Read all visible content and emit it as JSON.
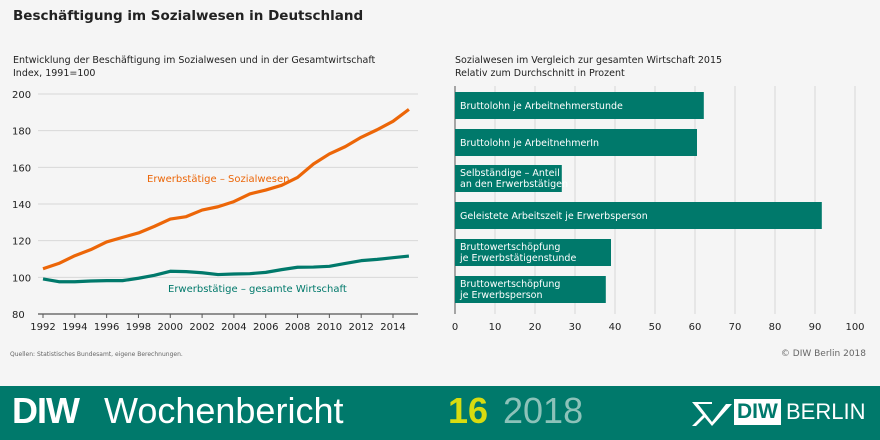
{
  "title": "Beschäftigung im Sozialwesen in Deutschland",
  "source": "Quellen: Statistisches Bundesamt, eigene Berechnungen.",
  "copyright": "© DIW Berlin 2018",
  "footer": {
    "brand_bold": "DIW",
    "brand_light": "Wochenbericht",
    "issue": "16",
    "year": "2018",
    "logo_text": "DIW",
    "logo_text2": "BERLIN"
  },
  "colors": {
    "orange": "#ec6608",
    "teal": "#00796b",
    "footer_bg": "#00796b",
    "issue": "#d8dc10"
  },
  "chart_data": [
    {
      "type": "line",
      "title": "Entwicklung der Beschäftigung im Sozialwesen und in der Gesamtwirtschaft",
      "subtitle": "Index, 1991=100",
      "ylim": [
        80,
        200
      ],
      "yticks": [
        80,
        100,
        120,
        140,
        160,
        180,
        200
      ],
      "xticks": [
        1992,
        1994,
        1996,
        1998,
        2000,
        2002,
        2004,
        2006,
        2008,
        2010,
        2012,
        2014
      ],
      "grid": true,
      "x": [
        1992,
        1993,
        1994,
        1995,
        1996,
        1997,
        1998,
        1999,
        2000,
        2001,
        2002,
        2003,
        2004,
        2005,
        2006,
        2007,
        2008,
        2009,
        2010,
        2011,
        2012,
        2013,
        2014,
        2015
      ],
      "series": [
        {
          "name": "Erwerbstätige – Sozialwesen",
          "color": "#ec6608",
          "values": [
            104.7,
            107.6,
            111.8,
            115.1,
            119.3,
            121.8,
            124.2,
            127.8,
            131.8,
            133.1,
            136.7,
            138.5,
            141.3,
            145.5,
            147.6,
            150.2,
            154.5,
            161.8,
            167.3,
            171.3,
            176.4,
            180.5,
            185.1,
            191.6
          ]
        },
        {
          "name": "Erwerbstätige – gesamte Wirtschaft",
          "color": "#00796b",
          "values": [
            99.1,
            97.6,
            97.6,
            98.0,
            98.2,
            98.2,
            99.5,
            101.1,
            103.3,
            103.1,
            102.5,
            101.5,
            101.8,
            102.0,
            102.7,
            104.2,
            105.5,
            105.6,
            106.0,
            107.6,
            109.1,
            109.8,
            110.7,
            111.6
          ]
        }
      ]
    },
    {
      "type": "bar",
      "orientation": "horizontal",
      "title": "Sozialwesen im Vergleich zur gesamten Wirtschaft 2015",
      "subtitle": "Relativ zum Durchschnitt in Prozent",
      "xlim": [
        0,
        100
      ],
      "xticks": [
        0,
        10,
        20,
        30,
        40,
        50,
        60,
        70,
        80,
        90,
        100
      ],
      "grid": true,
      "color": "#00796b",
      "categories": [
        [
          "Bruttolohn je Arbeitnehmerstunde"
        ],
        [
          "Bruttolohn je ArbeitnehmerIn"
        ],
        [
          "Selbständige – Anteil",
          "an den Erwerbstätigen"
        ],
        [
          "Geleistete Arbeitszeit je Erwerbsperson"
        ],
        [
          "Bruttowertschöpfung",
          "je Erwerbstätigenstunde"
        ],
        [
          "Bruttowertschöpfung",
          "je Erwerbsperson"
        ]
      ],
      "values": [
        62.2,
        60.5,
        26.7,
        91.7,
        39.0,
        37.7
      ]
    }
  ]
}
